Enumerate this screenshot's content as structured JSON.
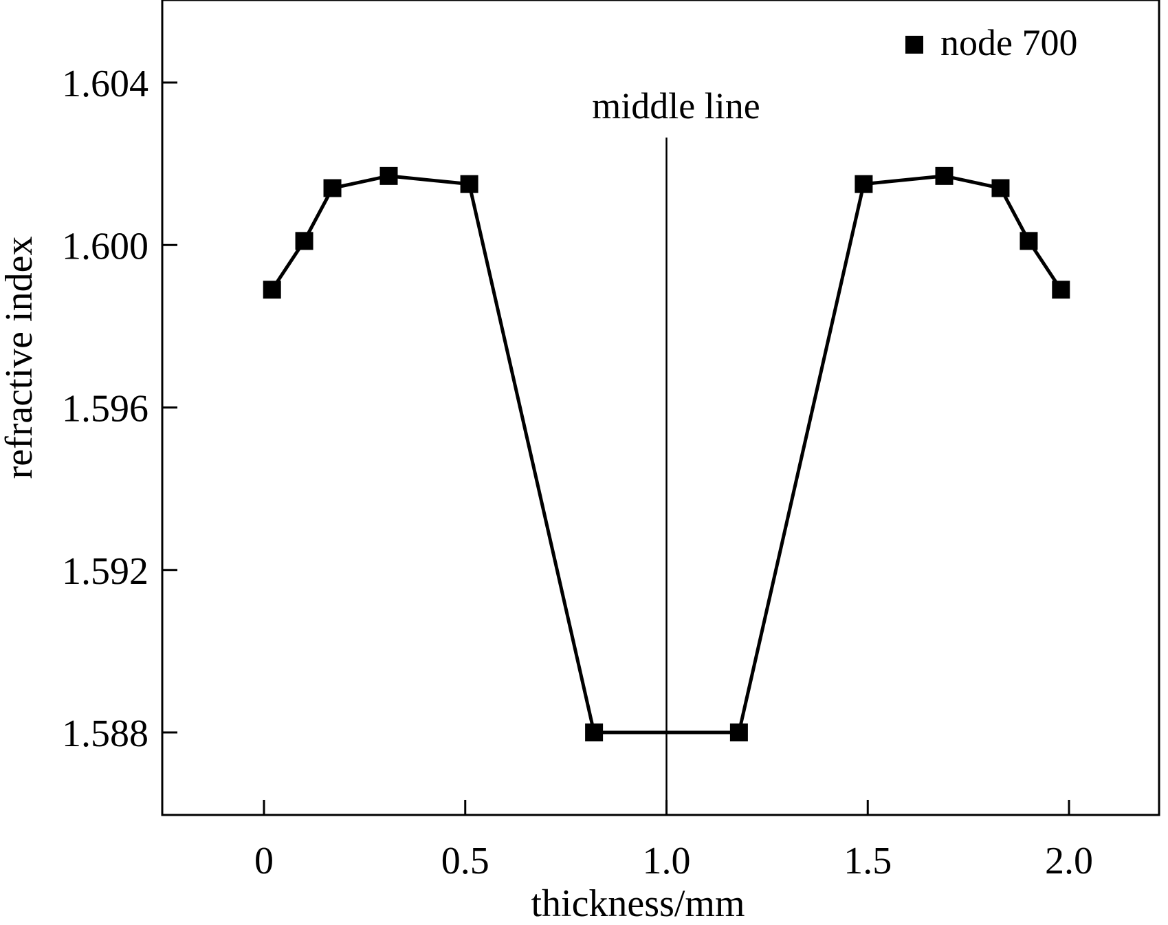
{
  "chart_data": {
    "type": "line",
    "title": "",
    "xlabel": "thickness/mm",
    "ylabel": "refractive index",
    "xlim": [
      -0.25,
      2.25
    ],
    "ylim": [
      1.586,
      1.606
    ],
    "xticks": [
      0,
      0.5,
      1.0,
      1.5,
      2.0
    ],
    "xtick_labels": [
      "0",
      "0.5",
      "1.0",
      "1.5",
      "2.0"
    ],
    "yticks": [
      1.588,
      1.592,
      1.596,
      1.6,
      1.604
    ],
    "ytick_labels": [
      "1.588",
      "1.592",
      "1.596",
      "1.600",
      "1.604"
    ],
    "grid": false,
    "legend": {
      "position": "top-right"
    },
    "series": [
      {
        "name": "node 700",
        "marker": "square",
        "color": "#000000",
        "x": [
          0.02,
          0.1,
          0.17,
          0.31,
          0.51,
          0.82,
          1.18,
          1.49,
          1.69,
          1.83,
          1.9,
          1.98
        ],
        "y": [
          1.5989,
          1.6001,
          1.6014,
          1.6017,
          1.6015,
          1.588,
          1.588,
          1.6015,
          1.6017,
          1.6014,
          1.6001,
          1.5989
        ]
      }
    ],
    "annotations": [
      {
        "text": "middle line",
        "x": 1.0
      }
    ]
  }
}
